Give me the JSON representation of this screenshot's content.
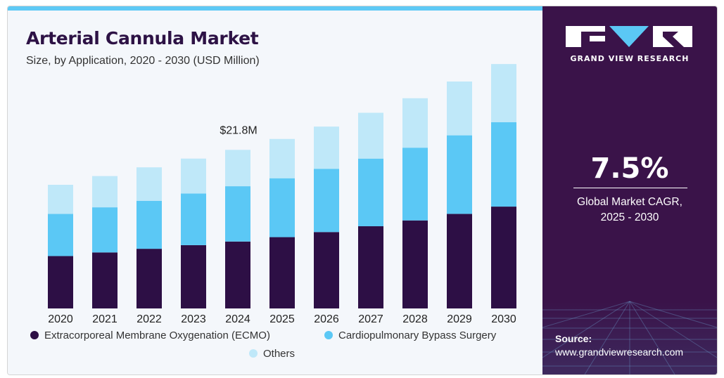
{
  "title": "Arterial Cannula Market",
  "subtitle": "Size, by Application, 2020 - 2030 (USD Million)",
  "chart_data": {
    "type": "bar",
    "stacked": true,
    "categories": [
      "2020",
      "2021",
      "2022",
      "2023",
      "2024",
      "2025",
      "2026",
      "2027",
      "2028",
      "2029",
      "2030"
    ],
    "series": [
      {
        "name": "Extracorporeal Membrane Oxygenation (ECMO)",
        "color": "#2d0f45",
        "values": [
          7.2,
          7.7,
          8.2,
          8.7,
          9.2,
          9.8,
          10.5,
          11.3,
          12.1,
          13.0,
          14.0
        ]
      },
      {
        "name": "Cardiopulmonary Bypass Surgery",
        "color": "#5bc8f5",
        "values": [
          5.8,
          6.2,
          6.6,
          7.1,
          7.6,
          8.1,
          8.7,
          9.3,
          10.0,
          10.8,
          11.6
        ]
      },
      {
        "name": "Others",
        "color": "#bfe8f9",
        "values": [
          4.0,
          4.3,
          4.6,
          4.8,
          5.0,
          5.4,
          5.8,
          6.3,
          6.8,
          7.4,
          8.0
        ]
      }
    ],
    "annotations": [
      {
        "category": "2024",
        "text": "$21.8M"
      }
    ],
    "ylim": [
      0,
      34
    ],
    "grid": false,
    "legend_position": "bottom"
  },
  "sidebar": {
    "brand": "GRAND VIEW RESEARCH",
    "cagr_value": "7.5%",
    "cagr_label_line1": "Global Market CAGR,",
    "cagr_label_line2": "2025 - 2030",
    "source_label": "Source:",
    "source_url": "www.grandviewresearch.com",
    "logo_dark_color": "#3a1349",
    "logo_light_color": "#ffffff",
    "logo_accent_color": "#5bc8f5"
  }
}
